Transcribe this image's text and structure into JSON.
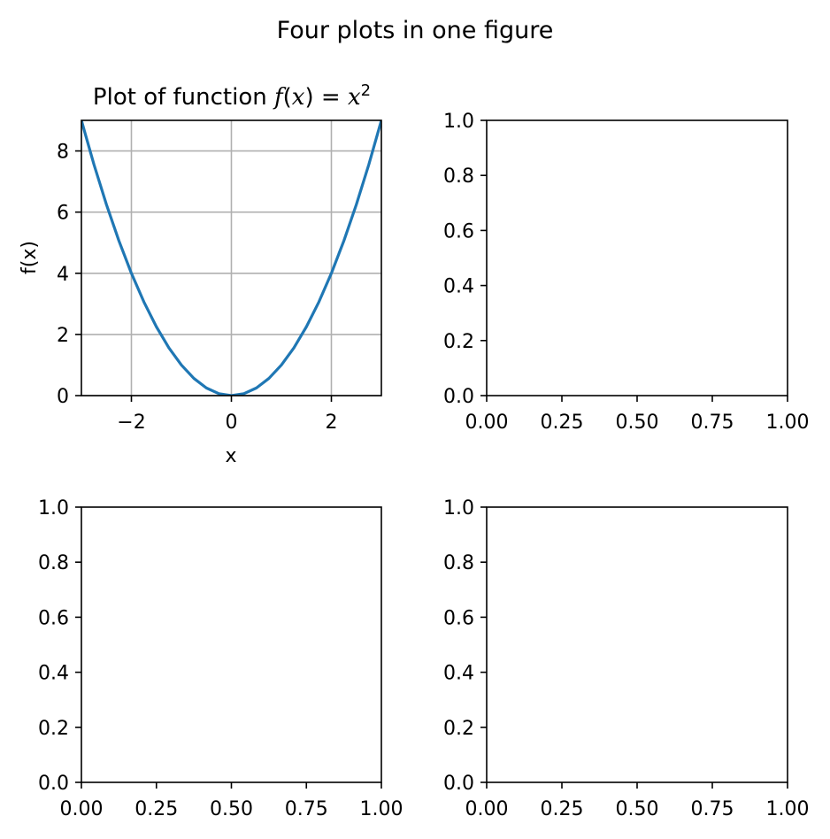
{
  "figure": {
    "title": "Four plots in one figure"
  },
  "chart_data": [
    {
      "type": "line",
      "position": "top-left",
      "title": "Plot of function f(x) = x²",
      "title_parts": {
        "prefix": "Plot of function ",
        "f": "f",
        "paren_open": "(",
        "x1": "x",
        "paren_close": ")",
        "equals": " = ",
        "x2": "x",
        "exponent": "2"
      },
      "xlabel": "x",
      "ylabel": "f(x)",
      "xlim": [
        -3,
        3
      ],
      "ylim": [
        0,
        9
      ],
      "grid": true,
      "x_ticks": [
        -2,
        0,
        2
      ],
      "x_tick_labels": [
        "−2",
        "0",
        "2"
      ],
      "y_ticks": [
        0,
        2,
        4,
        6,
        8
      ],
      "y_tick_labels": [
        "0",
        "2",
        "4",
        "6",
        "8"
      ],
      "series": [
        {
          "function": "x^2",
          "color": "#1f77b4",
          "x": [
            -3.0,
            -2.75,
            -2.5,
            -2.25,
            -2.0,
            -1.75,
            -1.5,
            -1.25,
            -1.0,
            -0.75,
            -0.5,
            -0.25,
            0.0,
            0.25,
            0.5,
            0.75,
            1.0,
            1.25,
            1.5,
            1.75,
            2.0,
            2.25,
            2.5,
            2.75,
            3.0
          ],
          "y": [
            9.0,
            7.5625,
            6.25,
            5.0625,
            4.0,
            3.0625,
            2.25,
            1.5625,
            1.0,
            0.5625,
            0.25,
            0.0625,
            0.0,
            0.0625,
            0.25,
            0.5625,
            1.0,
            1.5625,
            2.25,
            3.0625,
            4.0,
            5.0625,
            6.25,
            7.5625,
            9.0
          ]
        }
      ]
    },
    {
      "type": "line",
      "position": "top-right",
      "title": "",
      "xlabel": "",
      "ylabel": "",
      "xlim": [
        0,
        1
      ],
      "ylim": [
        0,
        1
      ],
      "grid": false,
      "x_ticks": [
        0,
        0.25,
        0.5,
        0.75,
        1
      ],
      "x_tick_labels": [
        "0.00",
        "0.25",
        "0.50",
        "0.75",
        "1.00"
      ],
      "y_ticks": [
        0,
        0.2,
        0.4,
        0.6,
        0.8,
        1
      ],
      "y_tick_labels": [
        "0.0",
        "0.2",
        "0.4",
        "0.6",
        "0.8",
        "1.0"
      ],
      "series": []
    },
    {
      "type": "line",
      "position": "bottom-left",
      "title": "",
      "xlabel": "",
      "ylabel": "",
      "xlim": [
        0,
        1
      ],
      "ylim": [
        0,
        1
      ],
      "grid": false,
      "x_ticks": [
        0,
        0.25,
        0.5,
        0.75,
        1
      ],
      "x_tick_labels": [
        "0.00",
        "0.25",
        "0.50",
        "0.75",
        "1.00"
      ],
      "y_ticks": [
        0,
        0.2,
        0.4,
        0.6,
        0.8,
        1
      ],
      "y_tick_labels": [
        "0.0",
        "0.2",
        "0.4",
        "0.6",
        "0.8",
        "1.0"
      ],
      "series": []
    },
    {
      "type": "line",
      "position": "bottom-right",
      "title": "",
      "xlabel": "",
      "ylabel": "",
      "xlim": [
        0,
        1
      ],
      "ylim": [
        0,
        1
      ],
      "grid": false,
      "x_ticks": [
        0,
        0.25,
        0.5,
        0.75,
        1
      ],
      "x_tick_labels": [
        "0.00",
        "0.25",
        "0.50",
        "0.75",
        "1.00"
      ],
      "y_ticks": [
        0,
        0.2,
        0.4,
        0.6,
        0.8,
        1
      ],
      "y_tick_labels": [
        "0.0",
        "0.2",
        "0.4",
        "0.6",
        "0.8",
        "1.0"
      ],
      "series": []
    }
  ]
}
